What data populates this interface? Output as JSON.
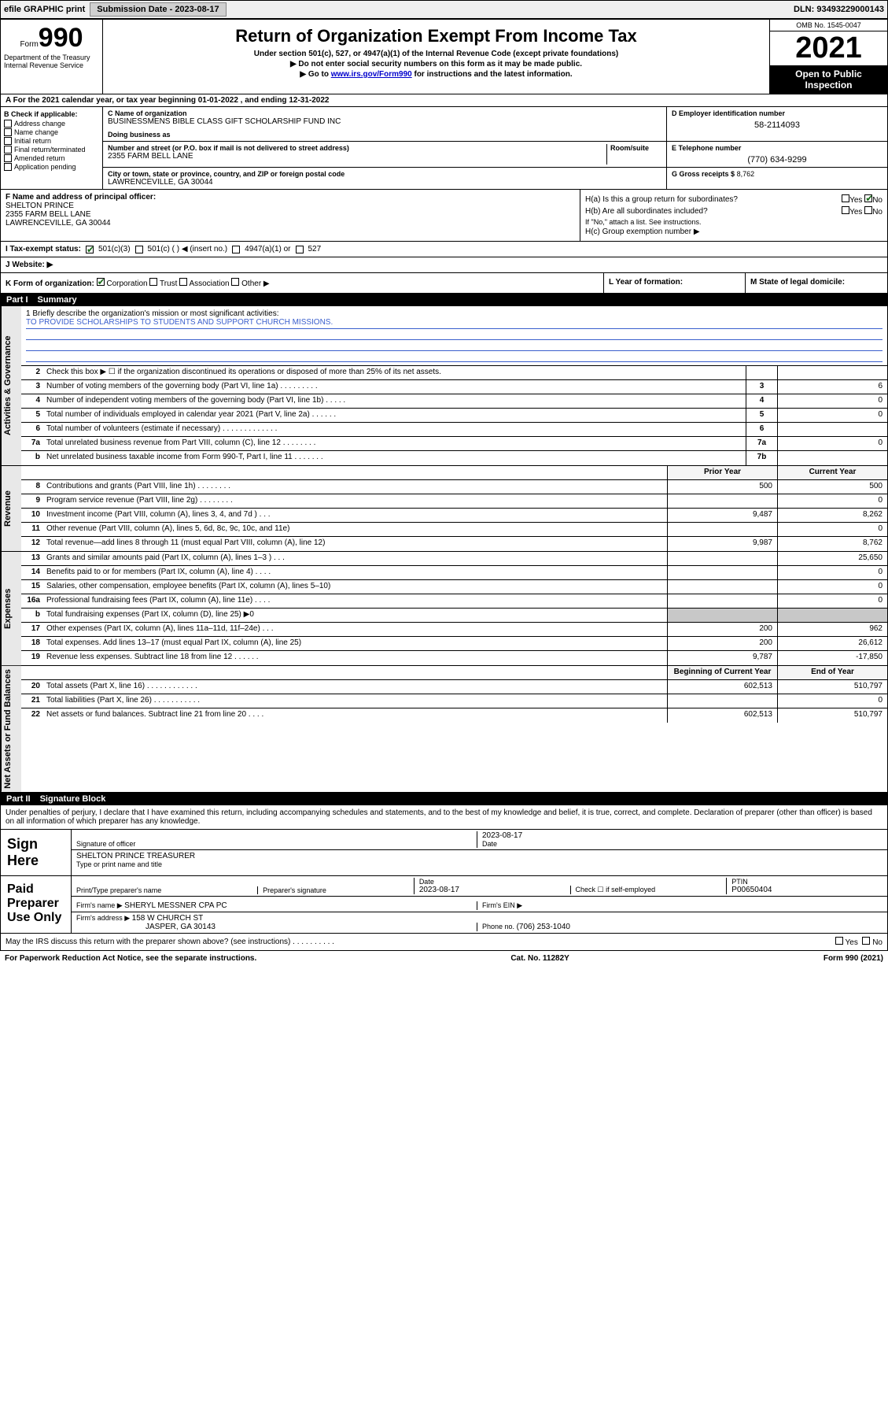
{
  "topbar": {
    "efile": "efile GRAPHIC print",
    "submission_label": "Submission Date - 2023-08-17",
    "dln_label": "DLN: 93493229000143"
  },
  "header": {
    "form_prefix": "Form",
    "form_number": "990",
    "dept": "Department of the Treasury\nInternal Revenue Service",
    "title": "Return of Organization Exempt From Income Tax",
    "subtitle1": "Under section 501(c), 527, or 4947(a)(1) of the Internal Revenue Code (except private foundations)",
    "subtitle2": "▶ Do not enter social security numbers on this form as it may be made public.",
    "subtitle3_pre": "▶ Go to ",
    "subtitle3_link": "www.irs.gov/Form990",
    "subtitle3_post": " for instructions and the latest information.",
    "omb": "OMB No. 1545-0047",
    "year": "2021",
    "open_pub": "Open to Public Inspection"
  },
  "line_a": "A For the 2021 calendar year, or tax year beginning 01-01-2022    , and ending 12-31-2022",
  "col_b": {
    "hdr": "B Check if applicable:",
    "items": [
      "Address change",
      "Name change",
      "Initial return",
      "Final return/terminated",
      "Amended return",
      "Application pending"
    ]
  },
  "block_c": {
    "name_lbl": "C Name of organization",
    "name": "BUSINESSMENS BIBLE CLASS GIFT SCHOLARSHIP FUND INC",
    "dba_lbl": "Doing business as",
    "addr_lbl": "Number and street (or P.O. box if mail is not delivered to street address)",
    "room_lbl": "Room/suite",
    "addr": "2355 FARM BELL LANE",
    "city_lbl": "City or town, state or province, country, and ZIP or foreign postal code",
    "city": "LAWRENCEVILLE, GA  30044"
  },
  "block_d": {
    "lbl": "D Employer identification number",
    "val": "58-2114093"
  },
  "block_e": {
    "lbl": "E Telephone number",
    "val": "(770) 634-9299"
  },
  "block_g": {
    "lbl": "G Gross receipts $",
    "val": "8,762"
  },
  "block_f": {
    "lbl": "F  Name and address of principal officer:",
    "name": "SHELTON PRINCE",
    "addr1": "2355 FARM BELL LANE",
    "addr2": "LAWRENCEVILLE, GA  30044"
  },
  "block_h": {
    "ha": "H(a)  Is this a group return for subordinates?",
    "hb": "H(b)  Are all subordinates included?",
    "hb_note": "If \"No,\" attach a list. See instructions.",
    "hc": "H(c)  Group exemption number ▶",
    "yes": "Yes",
    "no": "No"
  },
  "line_i": {
    "lbl": "I    Tax-exempt status:",
    "o1": "501(c)(3)",
    "o2": "501(c) (   ) ◀ (insert no.)",
    "o3": "4947(a)(1) or",
    "o4": "527"
  },
  "line_j": {
    "lbl": "J    Website: ▶"
  },
  "line_k": {
    "lbl": "K Form of organization:",
    "o1": "Corporation",
    "o2": "Trust",
    "o3": "Association",
    "o4": "Other ▶",
    "l_lbl": "L Year of formation:",
    "m_lbl": "M State of legal domicile:"
  },
  "part1": {
    "num": "Part I",
    "title": "Summary"
  },
  "mission": {
    "lead": "1   Briefly describe the organization's mission or most significant activities:",
    "text": "TO PROVIDE SCHOLARSHIPS TO STUDENTS AND SUPPORT CHURCH MISSIONS."
  },
  "gov_lines": [
    {
      "n": "2",
      "d": "Check this box ▶ ☐  if the organization discontinued its operations or disposed of more than 25% of its net assets.",
      "box": "",
      "v": ""
    },
    {
      "n": "3",
      "d": "Number of voting members of the governing body (Part VI, line 1a)  .   .   .   .   .   .   .   .   .",
      "box": "3",
      "v": "6"
    },
    {
      "n": "4",
      "d": "Number of independent voting members of the governing body (Part VI, line 1b)  .   .   .   .   .",
      "box": "4",
      "v": "0"
    },
    {
      "n": "5",
      "d": "Total number of individuals employed in calendar year 2021 (Part V, line 2a)  .   .   .   .   .   .",
      "box": "5",
      "v": "0"
    },
    {
      "n": "6",
      "d": "Total number of volunteers (estimate if necessary)   .   .   .   .   .   .   .   .   .   .   .   .   .",
      "box": "6",
      "v": ""
    },
    {
      "n": "7a",
      "d": "Total unrelated business revenue from Part VIII, column (C), line 12  .   .   .   .   .   .   .   .",
      "box": "7a",
      "v": "0"
    },
    {
      "n": "b",
      "d": "Net unrelated business taxable income from Form 990-T, Part I, line 11  .   .   .   .   .   .   .",
      "box": "7b",
      "v": ""
    }
  ],
  "pycy_hdr": {
    "py": "Prior Year",
    "cy": "Current Year"
  },
  "rev_lines": [
    {
      "n": "8",
      "d": "Contributions and grants (Part VIII, line 1h)   .   .   .   .   .   .   .   .",
      "py": "500",
      "cy": "500"
    },
    {
      "n": "9",
      "d": "Program service revenue (Part VIII, line 2g)  .   .   .   .   .   .   .   .",
      "py": "",
      "cy": "0"
    },
    {
      "n": "10",
      "d": "Investment income (Part VIII, column (A), lines 3, 4, and 7d )   .   .   .",
      "py": "9,487",
      "cy": "8,262"
    },
    {
      "n": "11",
      "d": "Other revenue (Part VIII, column (A), lines 5, 6d, 8c, 9c, 10c, and 11e)",
      "py": "",
      "cy": "0"
    },
    {
      "n": "12",
      "d": "Total revenue—add lines 8 through 11 (must equal Part VIII, column (A), line 12)",
      "py": "9,987",
      "cy": "8,762"
    }
  ],
  "exp_lines": [
    {
      "n": "13",
      "d": "Grants and similar amounts paid (Part IX, column (A), lines 1–3 )   .   .   .",
      "py": "",
      "cy": "25,650"
    },
    {
      "n": "14",
      "d": "Benefits paid to or for members (Part IX, column (A), line 4)  .   .   .   .",
      "py": "",
      "cy": "0"
    },
    {
      "n": "15",
      "d": "Salaries, other compensation, employee benefits (Part IX, column (A), lines 5–10)",
      "py": "",
      "cy": "0"
    },
    {
      "n": "16a",
      "d": "Professional fundraising fees (Part IX, column (A), line 11e)   .   .   .   .",
      "py": "",
      "cy": "0"
    },
    {
      "n": "b",
      "d": "Total fundraising expenses (Part IX, column (D), line 25) ▶0",
      "py": "shaded",
      "cy": "shaded"
    },
    {
      "n": "17",
      "d": "Other expenses (Part IX, column (A), lines 11a–11d, 11f–24e)  .   .   .",
      "py": "200",
      "cy": "962"
    },
    {
      "n": "18",
      "d": "Total expenses. Add lines 13–17 (must equal Part IX, column (A), line 25)",
      "py": "200",
      "cy": "26,612"
    },
    {
      "n": "19",
      "d": "Revenue less expenses. Subtract line 18 from line 12  .   .   .   .   .   .",
      "py": "9,787",
      "cy": "-17,850"
    }
  ],
  "na_hdr": {
    "py": "Beginning of Current Year",
    "cy": "End of Year"
  },
  "na_lines": [
    {
      "n": "20",
      "d": "Total assets (Part X, line 16)  .   .   .   .   .   .   .   .   .   .   .   .",
      "py": "602,513",
      "cy": "510,797"
    },
    {
      "n": "21",
      "d": "Total liabilities (Part X, line 26)  .   .   .   .   .   .   .   .   .   .   .",
      "py": "",
      "cy": "0"
    },
    {
      "n": "22",
      "d": "Net assets or fund balances. Subtract line 21 from line 20  .   .   .   .",
      "py": "602,513",
      "cy": "510,797"
    }
  ],
  "part2": {
    "num": "Part II",
    "title": "Signature Block"
  },
  "penalties": "Under penalties of perjury, I declare that I have examined this return, including accompanying schedules and statements, and to the best of my knowledge and belief, it is true, correct, and complete. Declaration of preparer (other than officer) is based on all information of which preparer has any knowledge.",
  "sign": {
    "here": "Sign Here",
    "sig_lbl": "Signature of officer",
    "date_lbl": "Date",
    "date": "2023-08-17",
    "name": "SHELTON PRINCE TREASURER",
    "name_lbl": "Type or print name and title"
  },
  "paid": {
    "here": "Paid Preparer Use Only",
    "p1": "Print/Type preparer's name",
    "p2": "Preparer's signature",
    "p3_lbl": "Date",
    "p3": "2023-08-17",
    "p4_lbl": "Check ☐ if self-employed",
    "p5_lbl": "PTIN",
    "p5": "P00650404",
    "firm_lbl": "Firm's name    ▶",
    "firm": "SHERYL MESSNER CPA PC",
    "ein_lbl": "Firm's EIN ▶",
    "addr_lbl": "Firm's address ▶",
    "addr": "158 W CHURCH ST",
    "addr2": "JASPER, GA  30143",
    "phone_lbl": "Phone no.",
    "phone": "(706) 253-1040"
  },
  "discuss": {
    "q": "May the IRS discuss this return with the preparer shown above? (see instructions)   .   .   .   .   .   .   .   .   .   .",
    "yes": "Yes",
    "no": "No"
  },
  "footer": {
    "l": "For Paperwork Reduction Act Notice, see the separate instructions.",
    "c": "Cat. No. 11282Y",
    "r": "Form 990 (2021)"
  },
  "vtabs": {
    "gov": "Activities & Governance",
    "rev": "Revenue",
    "exp": "Expenses",
    "na": "Net Assets or Fund Balances"
  }
}
